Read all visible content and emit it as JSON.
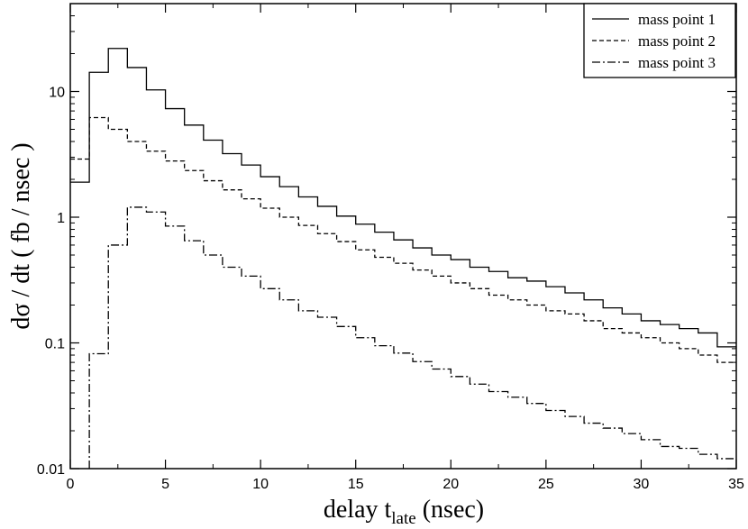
{
  "chart_data": {
    "type": "line",
    "step": true,
    "title": "",
    "xlabel": "delay t",
    "xlabel_sub": "late",
    "xlabel_suffix": " (nsec)",
    "ylabel": "dσ / dt ( fb / nsec )",
    "xlim": [
      0,
      35
    ],
    "ylim": [
      0.01,
      50
    ],
    "yscale": "log",
    "grid": false,
    "legend_position": "top-right",
    "xticks": [
      0,
      5,
      10,
      15,
      20,
      25,
      30,
      35
    ],
    "xtick_labels": [
      "0",
      "5",
      "10",
      "15",
      "20",
      "25",
      "30",
      "35"
    ],
    "yticks": [
      0.01,
      0.1,
      1,
      10
    ],
    "ytick_labels": [
      "0.01",
      "0.1",
      "1",
      "10"
    ],
    "bin_edges": [
      0,
      1,
      2,
      3,
      4,
      5,
      6,
      7,
      8,
      9,
      10,
      11,
      12,
      13,
      14,
      15,
      16,
      17,
      18,
      19,
      20,
      21,
      22,
      23,
      24,
      25,
      26,
      27,
      28,
      29,
      30,
      31,
      32,
      33,
      34,
      35
    ],
    "series": [
      {
        "name": "mass point 1",
        "dash": "solid",
        "values": [
          1.9,
          14.2,
          22.0,
          15.5,
          10.3,
          7.3,
          5.4,
          4.1,
          3.2,
          2.6,
          2.1,
          1.75,
          1.45,
          1.22,
          1.02,
          0.88,
          0.76,
          0.66,
          0.57,
          0.5,
          0.46,
          0.4,
          0.37,
          0.33,
          0.31,
          0.28,
          0.25,
          0.22,
          0.19,
          0.17,
          0.15,
          0.14,
          0.13,
          0.12,
          0.093
        ]
      },
      {
        "name": "mass point 2",
        "dash": "dashed",
        "values": [
          2.9,
          6.2,
          5.0,
          4.0,
          3.35,
          2.8,
          2.35,
          1.95,
          1.65,
          1.4,
          1.18,
          1.0,
          0.86,
          0.74,
          0.64,
          0.55,
          0.48,
          0.43,
          0.38,
          0.34,
          0.3,
          0.27,
          0.24,
          0.22,
          0.2,
          0.18,
          0.17,
          0.15,
          0.13,
          0.12,
          0.11,
          0.1,
          0.09,
          0.08,
          0.07
        ]
      },
      {
        "name": "mass point 3",
        "dash": "dashdot",
        "values": [
          0.005,
          0.082,
          0.6,
          1.2,
          1.1,
          0.85,
          0.65,
          0.5,
          0.4,
          0.34,
          0.27,
          0.22,
          0.18,
          0.16,
          0.135,
          0.11,
          0.095,
          0.083,
          0.071,
          0.062,
          0.054,
          0.047,
          0.041,
          0.037,
          0.033,
          0.029,
          0.026,
          0.023,
          0.021,
          0.019,
          0.017,
          0.015,
          0.0145,
          0.013,
          0.012
        ]
      }
    ]
  }
}
